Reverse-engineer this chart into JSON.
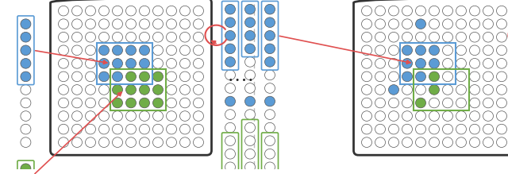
{
  "bg_color": "#ffffff",
  "blue_fill": "#5b9bd5",
  "green_fill": "#70ad47",
  "empty_fill": "#ffffff",
  "circle_ec": "#555555",
  "rect_blue": "#5b9bd5",
  "rect_green": "#70ad47",
  "arrow_color": "#e05050",
  "dash_color": "#bbbbbb",
  "dot_color": "#222222",
  "figure_width": 6.4,
  "figure_height": 2.19,
  "dpi": 100
}
